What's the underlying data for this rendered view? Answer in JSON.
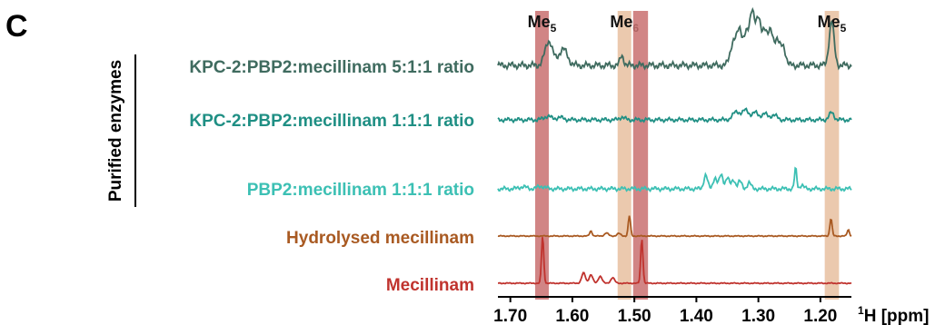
{
  "panel_label": "C",
  "group_label": "Purified enzymes",
  "chart_data": {
    "type": "line",
    "title": "",
    "xlabel": "1H [ppm]",
    "xlabel_parts": {
      "sup": "1",
      "text": "H [ppm]"
    },
    "x_reversed": true,
    "xlim": [
      1.72,
      1.15
    ],
    "xticks": [
      1.7,
      1.6,
      1.5,
      1.4,
      1.3,
      1.2
    ],
    "xtick_labels": [
      "1.70",
      "1.60",
      "1.50",
      "1.40",
      "1.30",
      "1.20"
    ],
    "highlight_regions": [
      {
        "label": "Me5",
        "label_base": "Me",
        "label_sub": "5",
        "range": [
          1.66,
          1.638
        ],
        "color": "#c97070"
      },
      {
        "label": "Me6",
        "label_base": "Me",
        "label_sub": "6",
        "range": [
          1.527,
          1.505
        ],
        "color": "#e8c0a0"
      },
      {
        "label": "",
        "range": [
          1.502,
          1.478
        ],
        "color": "#c97070"
      },
      {
        "label": "Me5",
        "label_base": "Me",
        "label_sub": "5",
        "range": [
          1.193,
          1.17
        ],
        "color": "#e8c0a0"
      }
    ],
    "series": [
      {
        "name": "KPC-2:PBP2:mecillinam 5:1:1 ratio",
        "color": "#3f6b5f",
        "grouped": true,
        "peaks": [
          [
            1.638,
            0.45,
            0.006
          ],
          [
            1.615,
            0.3,
            0.007
          ],
          [
            1.52,
            0.18,
            0.003
          ],
          [
            1.34,
            0.45,
            0.005
          ],
          [
            1.33,
            0.6,
            0.004
          ],
          [
            1.32,
            0.55,
            0.004
          ],
          [
            1.31,
            1.0,
            0.004
          ],
          [
            1.3,
            0.8,
            0.004
          ],
          [
            1.29,
            0.65,
            0.004
          ],
          [
            1.28,
            0.6,
            0.004
          ],
          [
            1.27,
            0.45,
            0.004
          ],
          [
            1.26,
            0.35,
            0.004
          ],
          [
            1.182,
            0.8,
            0.004
          ]
        ]
      },
      {
        "name": "KPC-2:PBP2:mecillinam 1:1:1 ratio",
        "color": "#1f8f84",
        "grouped": true,
        "peaks": [
          [
            1.64,
            0.15,
            0.006
          ],
          [
            1.62,
            0.1,
            0.006
          ],
          [
            1.52,
            0.12,
            0.004
          ],
          [
            1.335,
            0.35,
            0.006
          ],
          [
            1.32,
            0.4,
            0.005
          ],
          [
            1.305,
            0.3,
            0.005
          ],
          [
            1.29,
            0.25,
            0.005
          ],
          [
            1.275,
            0.2,
            0.005
          ],
          [
            1.182,
            0.3,
            0.004
          ]
        ]
      },
      {
        "name": "PBP2:mecillinam 1:1:1 ratio",
        "color": "#3cc0b4",
        "grouped": true,
        "peaks": [
          [
            1.68,
            0.08,
            0.006
          ],
          [
            1.65,
            0.1,
            0.006
          ],
          [
            1.385,
            0.55,
            0.003
          ],
          [
            1.37,
            0.45,
            0.003
          ],
          [
            1.36,
            0.55,
            0.003
          ],
          [
            1.35,
            0.45,
            0.003
          ],
          [
            1.34,
            0.35,
            0.003
          ],
          [
            1.33,
            0.3,
            0.003
          ],
          [
            1.315,
            0.25,
            0.003
          ],
          [
            1.24,
            0.8,
            0.0018
          ],
          [
            1.23,
            0.15,
            0.003
          ]
        ]
      },
      {
        "name": "Hydrolysed mecillinam",
        "color": "#a95a22",
        "grouped": false,
        "peaks": [
          [
            1.57,
            0.2,
            0.002
          ],
          [
            1.545,
            0.12,
            0.003
          ],
          [
            1.525,
            0.1,
            0.003
          ],
          [
            1.508,
            0.8,
            0.0018
          ],
          [
            1.183,
            0.7,
            0.0018
          ],
          [
            1.155,
            0.25,
            0.0018
          ]
        ]
      },
      {
        "name": "Mecillinam",
        "color": "#c0332e",
        "grouped": false,
        "peaks": [
          [
            1.648,
            1.0,
            0.0018
          ],
          [
            1.582,
            0.22,
            0.003
          ],
          [
            1.57,
            0.18,
            0.003
          ],
          [
            1.555,
            0.15,
            0.003
          ],
          [
            1.535,
            0.12,
            0.003
          ],
          [
            1.488,
            0.95,
            0.0018
          ]
        ]
      }
    ]
  }
}
